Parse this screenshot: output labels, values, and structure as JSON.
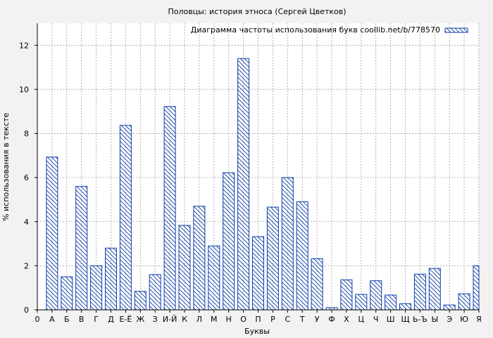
{
  "chart_data": {
    "type": "bar",
    "title": "Половцы: история этноса (Сергей Цветков)",
    "xlabel": "Буквы",
    "ylabel": "% использования в тексте",
    "ylim": [
      0,
      13
    ],
    "yticks": [
      0,
      2,
      4,
      6,
      8,
      10,
      12
    ],
    "grid": true,
    "legend_position": "top-right",
    "x_tick_labels": [
      "0",
      "А",
      "Б",
      "В",
      "Г",
      "Д",
      "Е-Ё",
      "Ж",
      "З",
      "И-Й",
      "К",
      "Л",
      "М",
      "Н",
      "О",
      "П",
      "Р",
      "С",
      "Т",
      "У",
      "Ф",
      "Х",
      "Ц",
      "Ч",
      "Ш",
      "Щ",
      "Ь-Ъ",
      "Ы",
      "Э",
      "Ю",
      "Я"
    ],
    "categories": [
      "А",
      "Б",
      "В",
      "Г",
      "Д",
      "Е-Ё",
      "Ж",
      "З",
      "И-Й",
      "К",
      "Л",
      "М",
      "Н",
      "О",
      "П",
      "Р",
      "С",
      "Т",
      "У",
      "Ф",
      "Х",
      "Ц",
      "Ч",
      "Ш",
      "Щ",
      "Ь-Ъ",
      "Ы",
      "Э",
      "Ю",
      "Я"
    ],
    "series": [
      {
        "name": "Диаграмма частоты использования букв coollib.net/b/778570",
        "values": [
          6.93,
          1.5,
          5.6,
          2.0,
          2.8,
          8.37,
          0.84,
          1.6,
          9.22,
          3.83,
          4.7,
          2.9,
          6.22,
          11.4,
          3.32,
          4.66,
          6.0,
          4.9,
          2.32,
          0.1,
          1.36,
          0.7,
          1.32,
          0.67,
          0.28,
          1.62,
          1.88,
          0.22,
          0.73,
          2.0
        ]
      }
    ],
    "colors": {
      "bar_stroke": "#0e3ea8",
      "background": "#f2f2f2",
      "plot_background": "#ffffff",
      "grid": "#a0a0a0"
    }
  }
}
